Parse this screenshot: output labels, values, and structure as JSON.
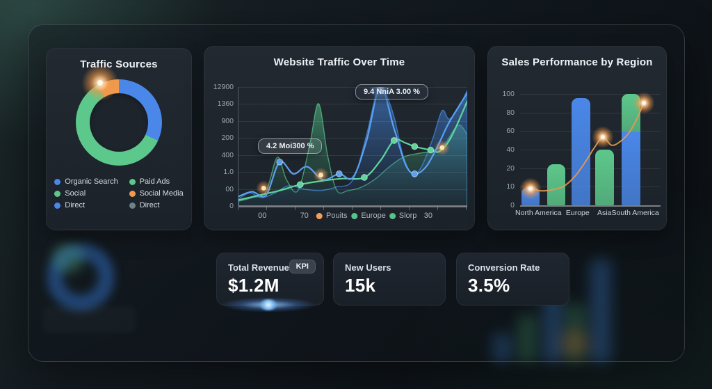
{
  "colors": {
    "blue": "#4a87e8",
    "green": "#5dc88b",
    "orange": "#f09a4f",
    "gray_teal": "#6e8184",
    "panel_bg": "#1d242c"
  },
  "traffic_panel": {
    "title": "Traffic Sources",
    "legend": [
      {
        "label": "Organic Search",
        "color": "#4a87e8"
      },
      {
        "label": "Paid Ads",
        "color": "#5dc88b"
      },
      {
        "label": "Social",
        "color": "#5dc88b"
      },
      {
        "label": "Social Media",
        "color": "#f09a4f"
      },
      {
        "label": "Direct",
        "color": "#4a87e8"
      },
      {
        "label": "Direct",
        "color": "#6e8184"
      }
    ]
  },
  "line_panel": {
    "title": "Website Traffic Over Time"
  },
  "bars_panel": {
    "title": "Sales Performance by Region"
  },
  "kpis": [
    {
      "label": "Total Revenue",
      "value": "$1.2M",
      "badge": "KPI"
    },
    {
      "label": "New Users",
      "value": "15k"
    },
    {
      "label": "Conversion Rate",
      "value": "3.5%"
    }
  ],
  "chart_data": [
    {
      "type": "pie",
      "title": "Traffic Sources",
      "donut": true,
      "segments": [
        {
          "label": "blue-segment",
          "color": "#4a87e8",
          "start_deg": 0,
          "end_deg": 115,
          "pct": 32
        },
        {
          "label": "green-segment",
          "color": "#5dc88b",
          "start_deg": 115,
          "end_deg": 330,
          "pct": 60
        },
        {
          "label": "orange-segment",
          "color": "#f09a4f",
          "start_deg": 330,
          "end_deg": 360,
          "pct": 8
        }
      ]
    },
    {
      "type": "area",
      "title": "Website Traffic Over Time",
      "y_ticks": [
        "12900",
        "1360",
        "900",
        "200",
        "400",
        "1.0",
        "00",
        "0"
      ],
      "tooltips": [
        {
          "text": "4.2 Moi300 %"
        },
        {
          "text": "9.4 NniA 3.00 %"
        }
      ],
      "x_row": [
        {
          "type": "tick",
          "text": "00",
          "x_pct": 10.7
        },
        {
          "type": "tick",
          "text": "70",
          "x_pct": 29
        },
        {
          "type": "legend",
          "text": "Pouits",
          "color": "#f0a05a",
          "x_pct": 41
        },
        {
          "type": "legend",
          "text": "Europe",
          "color": "#56c28c",
          "x_pct": 57
        },
        {
          "type": "legend",
          "text": "Slorp",
          "color": "#56c28c",
          "x_pct": 72
        },
        {
          "type": "tick",
          "text": "30",
          "x_pct": 83
        }
      ],
      "series": [
        {
          "name": "green-area",
          "kind": "area",
          "color": "#57c98c",
          "points": [
            [
              0,
              4
            ],
            [
              6,
              7
            ],
            [
              12,
              12
            ],
            [
              17,
              41
            ],
            [
              21,
              22
            ],
            [
              26,
              13
            ],
            [
              31,
              50
            ],
            [
              35,
              86
            ],
            [
              39,
              42
            ],
            [
              43,
              13
            ],
            [
              48,
              13
            ],
            [
              54,
              16
            ],
            [
              60,
              23
            ],
            [
              66,
              33
            ],
            [
              72,
              41
            ],
            [
              78,
              44
            ],
            [
              84,
              46
            ],
            [
              90,
              52
            ],
            [
              96,
              68
            ],
            [
              100,
              60
            ]
          ]
        },
        {
          "name": "blue-area",
          "kind": "area",
          "color": "#4a90ea",
          "points": [
            [
              0,
              6
            ],
            [
              5,
              11
            ],
            [
              10,
              7
            ],
            [
              16,
              11
            ],
            [
              22,
              17
            ],
            [
              29,
              14
            ],
            [
              36,
              13
            ],
            [
              43,
              16
            ],
            [
              50,
              22
            ],
            [
              56,
              60
            ],
            [
              61,
              100
            ],
            [
              64,
              96
            ],
            [
              68,
              75
            ],
            [
              72,
              42
            ],
            [
              76,
              27
            ],
            [
              80,
              33
            ],
            [
              85,
              57
            ],
            [
              89,
              80
            ],
            [
              92,
              73
            ],
            [
              96,
              82
            ],
            [
              100,
              97
            ]
          ]
        },
        {
          "name": "green-line",
          "kind": "line",
          "color": "#5dd598",
          "points": [
            [
              0,
              5
            ],
            [
              9,
              9
            ],
            [
              18,
              13
            ],
            [
              27,
              18
            ],
            [
              36,
              21
            ],
            [
              45,
              23
            ],
            [
              55,
              24
            ],
            [
              62,
              38
            ],
            [
              68,
              55
            ],
            [
              73,
              53
            ],
            [
              77,
              50
            ],
            [
              84,
              47
            ],
            [
              88,
              46
            ],
            [
              93,
              58
            ],
            [
              100,
              88
            ]
          ],
          "markers": [
            [
              27,
              18
            ],
            [
              55,
              24
            ],
            [
              68,
              55
            ],
            [
              77,
              50
            ],
            [
              84,
              47
            ]
          ]
        },
        {
          "name": "blue-line",
          "kind": "line",
          "color": "#5aa0f2",
          "points": [
            [
              0,
              8
            ],
            [
              6,
              12
            ],
            [
              12,
              9
            ],
            [
              18,
              37
            ],
            [
              24,
              27
            ],
            [
              30,
              33
            ],
            [
              37,
              22
            ],
            [
              44,
              27
            ],
            [
              50,
              24
            ],
            [
              56,
              55
            ],
            [
              62,
              100
            ],
            [
              68,
              65
            ],
            [
              73,
              35
            ],
            [
              77,
              27
            ],
            [
              82,
              33
            ],
            [
              87,
              50
            ],
            [
              92,
              70
            ],
            [
              100,
              95
            ]
          ],
          "markers": [
            [
              18,
              37
            ],
            [
              44,
              27
            ],
            [
              77,
              27
            ]
          ]
        }
      ],
      "peak_glow": [
        62,
        100
      ],
      "orange_markers": [
        [
          11,
          15
        ],
        [
          36,
          26
        ],
        [
          89,
          49
        ]
      ]
    },
    {
      "type": "bar",
      "title": "Sales Performance by Region",
      "y_ticks": [
        "100",
        "80",
        "60",
        "40",
        "20",
        "10",
        "0"
      ],
      "ylim": [
        0,
        100
      ],
      "categories": [
        "North America",
        "Europe",
        "Asia",
        "South America"
      ],
      "category_centers_pct": [
        13,
        41,
        60,
        82
      ],
      "bars": [
        {
          "center_pct": 7.6,
          "segments": [
            {
              "color": "#4a87e8",
              "value": 16
            }
          ]
        },
        {
          "center_pct": 25.7,
          "segments": [
            {
              "color": "#5dc88b",
              "value": 37
            }
          ]
        },
        {
          "center_pct": 43.3,
          "segments": [
            {
              "color": "#4a87e8",
              "value": 96
            }
          ]
        },
        {
          "center_pct": 60.2,
          "segments": [
            {
              "color": "#5dc88b",
              "value": 50
            }
          ]
        },
        {
          "center_pct": 79.0,
          "segments": [
            {
              "color": "#5dc88b",
              "value": 34
            },
            {
              "color": "#4a87e8",
              "value": 66
            }
          ]
        }
      ],
      "line": {
        "color": "#e89a52",
        "points": [
          [
            7.6,
            15
          ],
          [
            15,
            13
          ],
          [
            23,
            14
          ],
          [
            31,
            17
          ],
          [
            39,
            26
          ],
          [
            47,
            40
          ],
          [
            53,
            52
          ],
          [
            59,
            61
          ],
          [
            65,
            54
          ],
          [
            71,
            57
          ],
          [
            78,
            66
          ],
          [
            84,
            80
          ],
          [
            88,
            92
          ]
        ],
        "glow_points": [
          [
            7.6,
            15
          ],
          [
            59,
            61
          ],
          [
            88,
            92
          ]
        ]
      }
    }
  ]
}
